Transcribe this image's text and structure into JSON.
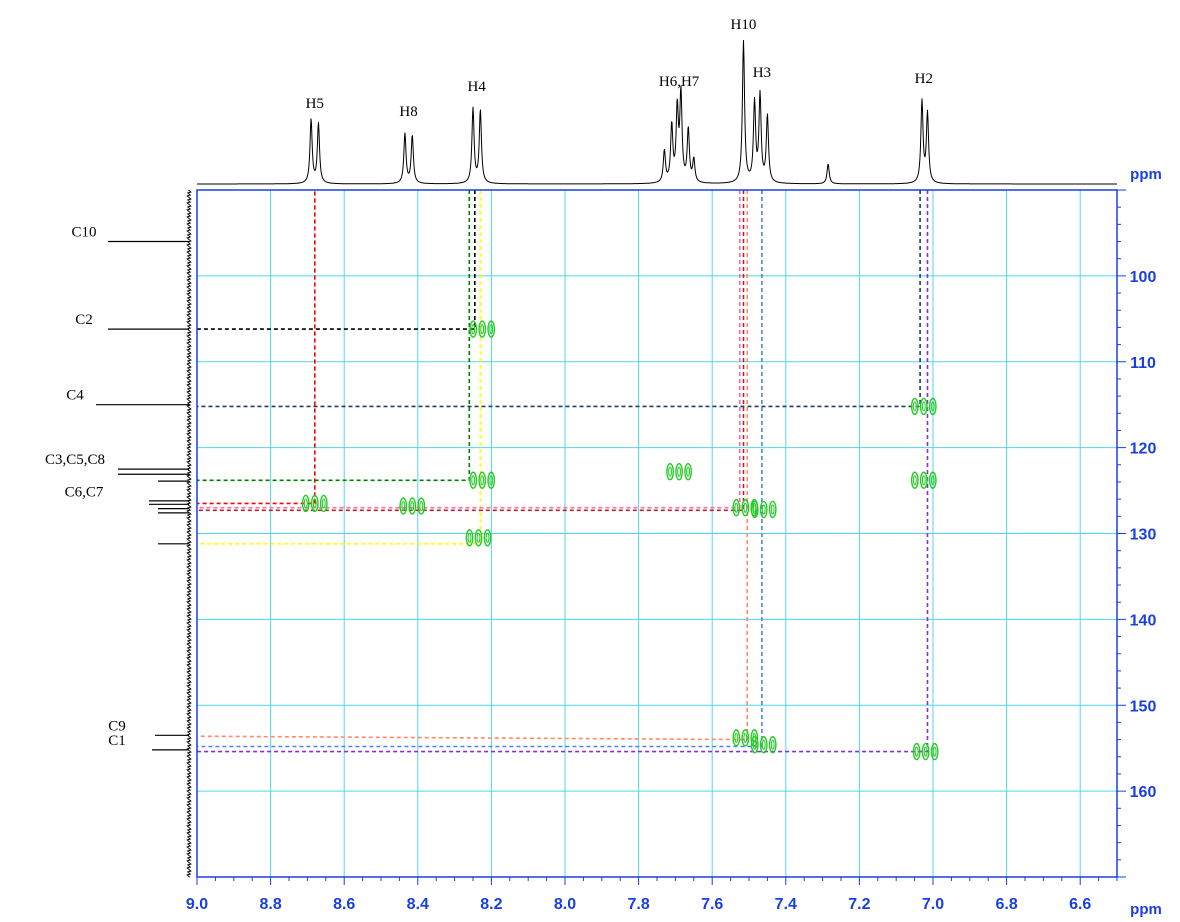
{
  "chart_data": {
    "type": "scatter",
    "title": "",
    "x_unit": "ppm",
    "y_unit": "ppm",
    "xlim": [
      9.0,
      6.5
    ],
    "ylim": [
      90,
      170
    ],
    "x_ticks": [
      "9.0",
      "8.8",
      "8.6",
      "8.4",
      "8.2",
      "8.0",
      "7.8",
      "7.6",
      "7.4",
      "7.2",
      "7.0",
      "6.8",
      "6.6"
    ],
    "y_ticks": [
      "100",
      "110",
      "120",
      "130",
      "140",
      "150",
      "160"
    ],
    "grid": true,
    "proton_peaks": [
      {
        "label": "H5",
        "shift": 8.68
      },
      {
        "label": "H8",
        "shift": 8.425
      },
      {
        "label": "H4",
        "shift": 8.24
      },
      {
        "label": "H6,H7",
        "shift": 7.69
      },
      {
        "label": "H10",
        "shift": 7.515
      },
      {
        "label": "H3",
        "shift": 7.465
      },
      {
        "label": "H2",
        "shift": 7.025
      }
    ],
    "carbon_labels": [
      {
        "label": "C10",
        "shift": 96
      },
      {
        "label": "C2",
        "shift": 106.2
      },
      {
        "label": "C4",
        "shift": 115
      },
      {
        "label": "C3,C5,C8",
        "shift": 122.5
      },
      {
        "label": "C6,C7",
        "shift": 126.3
      },
      {
        "label": "C9",
        "shift": 153.5
      },
      {
        "label": "C1",
        "shift": 155.2
      }
    ],
    "correlations": [
      {
        "h": 8.225,
        "c": 106.2
      },
      {
        "h": 7.025,
        "c": 115.2
      },
      {
        "h": 8.225,
        "c": 123.8
      },
      {
        "h": 7.025,
        "c": 123.8
      },
      {
        "h": 7.69,
        "c": 122.8
      },
      {
        "h": 8.68,
        "c": 126.5
      },
      {
        "h": 8.415,
        "c": 126.8
      },
      {
        "h": 7.51,
        "c": 127
      },
      {
        "h": 7.46,
        "c": 127.2
      },
      {
        "h": 8.235,
        "c": 130.5
      },
      {
        "h": 7.51,
        "c": 153.8
      },
      {
        "h": 7.46,
        "c": 154.6
      },
      {
        "h": 7.02,
        "c": 155.4
      }
    ],
    "series": [
      {
        "color": "#ff0000",
        "path": [
          [
            8.68,
            126.5
          ],
          [
            8.68,
            90
          ],
          [
            8.68,
            126.5
          ],
          [
            9.0,
            126.5
          ]
        ]
      },
      {
        "color": "#008000",
        "path": [
          [
            8.26,
            90
          ],
          [
            8.26,
            123.8
          ],
          [
            9.0,
            123.8
          ]
        ]
      },
      {
        "color": "#000000",
        "path": [
          [
            8.245,
            90
          ],
          [
            8.245,
            106.2
          ],
          [
            9.0,
            106.2
          ]
        ]
      },
      {
        "color": "#ffff00",
        "path": [
          [
            8.23,
            90
          ],
          [
            8.23,
            131.2
          ],
          [
            9.0,
            131.2
          ]
        ]
      },
      {
        "color": "#1f3f5f",
        "path": [
          [
            7.035,
            90
          ],
          [
            7.035,
            115.2
          ],
          [
            9.0,
            115.2
          ]
        ]
      },
      {
        "color": "#ff69b4",
        "path": [
          [
            7.525,
            90
          ],
          [
            7.525,
            127
          ],
          [
            9.0,
            127
          ]
        ]
      },
      {
        "color": "#ff8c69",
        "path": [
          [
            7.505,
            90
          ],
          [
            7.505,
            154
          ],
          [
            9.0,
            153.6
          ]
        ]
      },
      {
        "color": "#a52a2a",
        "path": [
          [
            7.515,
            90
          ],
          [
            7.515,
            127.3
          ],
          [
            9.0,
            127.3
          ]
        ]
      },
      {
        "color": "#4a86e8",
        "path": [
          [
            7.465,
            90
          ],
          [
            7.465,
            154.8
          ],
          [
            9.0,
            154.8
          ]
        ]
      },
      {
        "color": "#8a2be2",
        "path": [
          [
            7.015,
            90
          ],
          [
            7.015,
            155.4
          ],
          [
            9.0,
            155.4
          ]
        ]
      }
    ],
    "colors": {
      "axis": "#1a3fe0",
      "grid": "#4fd7e8",
      "contour": "#22cc22"
    }
  }
}
